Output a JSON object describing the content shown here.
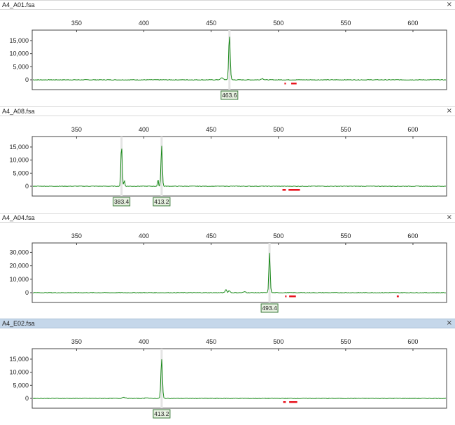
{
  "panels": [
    {
      "title": "A4_A01.fsa",
      "selected": false,
      "close_icon": "×",
      "yticks": [
        0,
        5000,
        10000,
        15000
      ],
      "ytick_labels": [
        "0",
        "5,000",
        "10,000",
        "15,000"
      ],
      "ymax": 19000,
      "peaks": [
        {
          "x": 463.6,
          "height": 16800,
          "label": "463.6",
          "width": 0.8
        },
        {
          "x": 458,
          "height": 700,
          "width": 1.5
        },
        {
          "x": 488,
          "height": 450,
          "width": 1.3
        }
      ],
      "markers": [
        [
          504.5,
          505.5
        ],
        [
          509.5,
          513.5
        ]
      ]
    },
    {
      "title": "A4_A08.fsa",
      "selected": false,
      "close_icon": "×",
      "yticks": [
        0,
        5000,
        10000,
        15000
      ],
      "ytick_labels": [
        "0",
        "5,000",
        "10,000",
        "15,000"
      ],
      "ymax": 19000,
      "peaks": [
        {
          "x": 383.4,
          "height": 15600,
          "label": "383.4",
          "width": 0.7
        },
        {
          "x": 385.5,
          "height": 2300,
          "width": 0.5
        },
        {
          "x": 413.2,
          "height": 15600,
          "label": "413.2",
          "width": 0.7
        },
        {
          "x": 410.5,
          "height": 2500,
          "width": 0.5
        }
      ],
      "markers": [
        [
          503,
          505.5
        ],
        [
          507.5,
          516
        ]
      ]
    },
    {
      "title": "A4_A04.fsa",
      "selected": false,
      "close_icon": "×",
      "yticks": [
        0,
        10000,
        20000,
        30000
      ],
      "ytick_labels": [
        "0",
        "10,000",
        "20,000",
        "30,000"
      ],
      "ymax": 37000,
      "peaks": [
        {
          "x": 493.4,
          "height": 29500,
          "label": "493.4",
          "width": 0.7
        },
        {
          "x": 461,
          "height": 2400,
          "width": 0.8
        },
        {
          "x": 463.5,
          "height": 1600,
          "width": 0.8
        },
        {
          "x": 475,
          "height": 700,
          "width": 1.2
        }
      ],
      "markers": [
        [
          505,
          505.6
        ],
        [
          508,
          513
        ],
        [
          588,
          589.5
        ]
      ]
    },
    {
      "title": "A4_E02.fsa",
      "selected": true,
      "close_icon": "×",
      "yticks": [
        0,
        5000,
        10000,
        15000
      ],
      "ytick_labels": [
        "0",
        "5,000",
        "10,000",
        "15,000"
      ],
      "ymax": 19000,
      "peaks": [
        {
          "x": 413.2,
          "height": 15000,
          "label": "413.2",
          "width": 0.8
        },
        {
          "x": 385,
          "height": 450,
          "width": 1.6
        },
        {
          "x": 402,
          "height": 300,
          "width": 1.4
        }
      ],
      "markers": [
        [
          503.5,
          505.5
        ],
        [
          508,
          514
        ]
      ]
    }
  ],
  "xticks": [
    350,
    400,
    450,
    500,
    550,
    600
  ],
  "xtick_labels": [
    "350",
    "400",
    "450",
    "500",
    "550",
    "600"
  ],
  "xmin": 317,
  "xmax": 625,
  "colors": {
    "trace": "#1a8a1a",
    "marker": "#e8141e",
    "peak_box_fill": "#e6f0e0",
    "peak_box_border": "#3a7a3a",
    "selected_bar": "#c5d7ea"
  }
}
